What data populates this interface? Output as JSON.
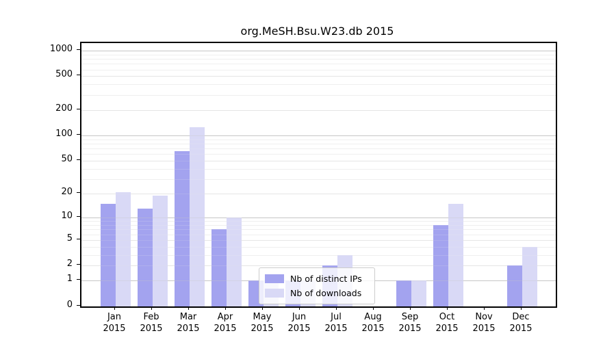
{
  "chart_data": {
    "type": "bar",
    "title": "org.MeSH.Bsu.W23.db 2015",
    "categories": [
      "Jan",
      "Feb",
      "Mar",
      "Apr",
      "May",
      "Jun",
      "Jul",
      "Aug",
      "Sep",
      "Oct",
      "Nov",
      "Dec"
    ],
    "year": "2015",
    "series": [
      {
        "name": "Nb of distinct IPs",
        "color": "#a3a3ef",
        "values": [
          15,
          13,
          65,
          7,
          1,
          1,
          2,
          0,
          1,
          8,
          0,
          2
        ]
      },
      {
        "name": "Nb of downloads",
        "color": "#d9d9f6",
        "values": [
          21,
          19,
          125,
          10,
          1,
          1,
          3,
          0,
          1,
          15,
          0,
          4
        ]
      }
    ],
    "yscale": "log1p",
    "yticks": [
      0,
      1,
      2,
      5,
      10,
      20,
      50,
      100,
      200,
      500,
      1000
    ],
    "ylim": [
      0,
      1100
    ],
    "grid": true,
    "legend_position": "bottom-center-inside"
  }
}
